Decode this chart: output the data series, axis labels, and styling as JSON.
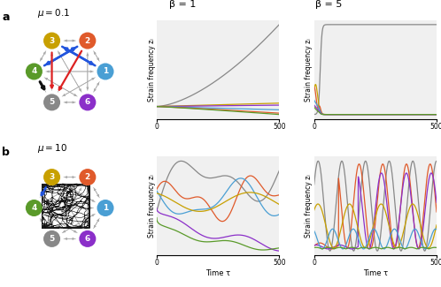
{
  "beta1_label": "β = 1",
  "beta5_label": "β = 5",
  "xlabel": "Time τ",
  "ylabel": "Strain frequency zᵢ",
  "node_colors_a": [
    "#4a9fd4",
    "#e05a2b",
    "#c8a000",
    "#5a9a2a",
    "#888888",
    "#8b2fc9"
  ],
  "node_colors_b": [
    "#4a9fd4",
    "#e05a2b",
    "#c8a000",
    "#5a9a2a",
    "#888888",
    "#8b2fc9"
  ],
  "node_labels": [
    "1",
    "2",
    "3",
    "4",
    "5",
    "6"
  ],
  "bg_color": "#f0f0f0"
}
